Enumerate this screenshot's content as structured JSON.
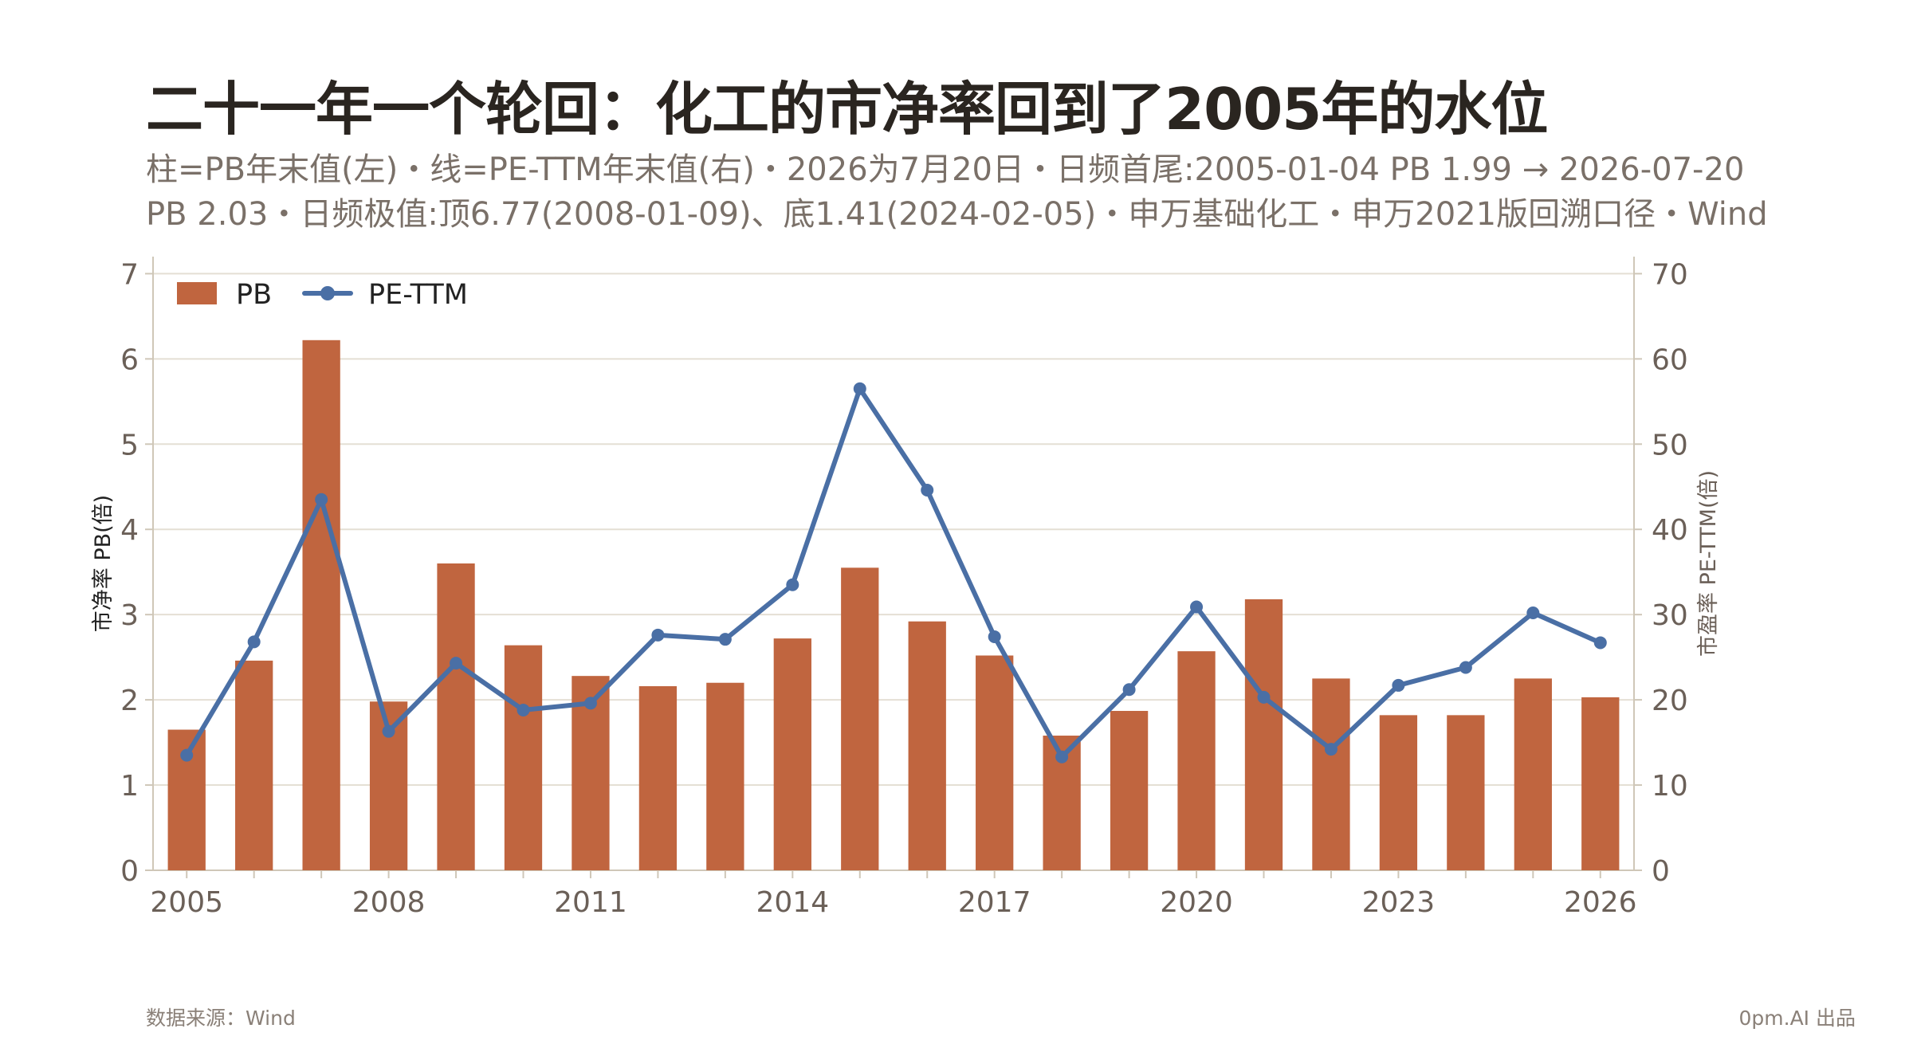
{
  "title": "二十一年一个轮回：化工的市净率回到了2005年的水位",
  "subtitle_line1": "柱=PB年末值(左)・线=PE-TTM年末值(右)・2026为7月20日・日频首尾:2005-01-04 PB 1.99 → 2026-07-20",
  "subtitle_line2": "PB 2.03・日频极值:顶6.77(2008-01-09)、底1.41(2024-02-05)・申万基础化工・申万2021版回溯口径・Wind",
  "source": "数据来源：Wind",
  "brand": "0pm.AI 出品",
  "colors": {
    "bar": "#c0653f",
    "line": "#4a6fa5",
    "grid": "#e4dfd4",
    "axis": "#cfc7b8",
    "tick_text": "#6b6058"
  },
  "chart_data": {
    "type": "bar",
    "x": [
      "2005",
      "2006",
      "2007",
      "2008",
      "2009",
      "2010",
      "2011",
      "2012",
      "2013",
      "2014",
      "2015",
      "2016",
      "2017",
      "2018",
      "2019",
      "2020",
      "2021",
      "2022",
      "2023",
      "2024",
      "2025",
      "2026"
    ],
    "x_tick_labels": [
      "2005",
      "2008",
      "2011",
      "2014",
      "2017",
      "2020",
      "2023",
      "2026"
    ],
    "series": [
      {
        "name": "PB",
        "type": "bar",
        "axis": "left",
        "values": [
          1.65,
          2.46,
          6.22,
          1.98,
          3.6,
          2.64,
          2.28,
          2.16,
          2.2,
          2.72,
          3.55,
          2.92,
          2.52,
          1.58,
          1.87,
          2.57,
          3.18,
          2.25,
          1.82,
          1.82,
          2.25,
          2.03
        ]
      },
      {
        "name": "PE-TTM",
        "type": "line",
        "axis": "right",
        "values": [
          13.5,
          26.8,
          43.5,
          16.3,
          24.3,
          18.8,
          19.6,
          27.6,
          27.1,
          33.5,
          56.5,
          44.6,
          27.4,
          13.3,
          21.2,
          30.9,
          20.3,
          14.2,
          21.7,
          23.8,
          30.2,
          26.7
        ]
      }
    ],
    "ylabel_left": "市净率 PB(倍)",
    "ylabel_right": "市盈率 PE-TTM(倍)",
    "ylim_left": [
      0,
      7.2
    ],
    "ylim_right": [
      0,
      72
    ],
    "yticks_left": [
      "0",
      "1",
      "2",
      "3",
      "4",
      "5",
      "6",
      "7"
    ],
    "yticks_right": [
      "0",
      "10",
      "20",
      "30",
      "40",
      "50",
      "60",
      "70"
    ],
    "grid": true,
    "legend": "top-left"
  }
}
